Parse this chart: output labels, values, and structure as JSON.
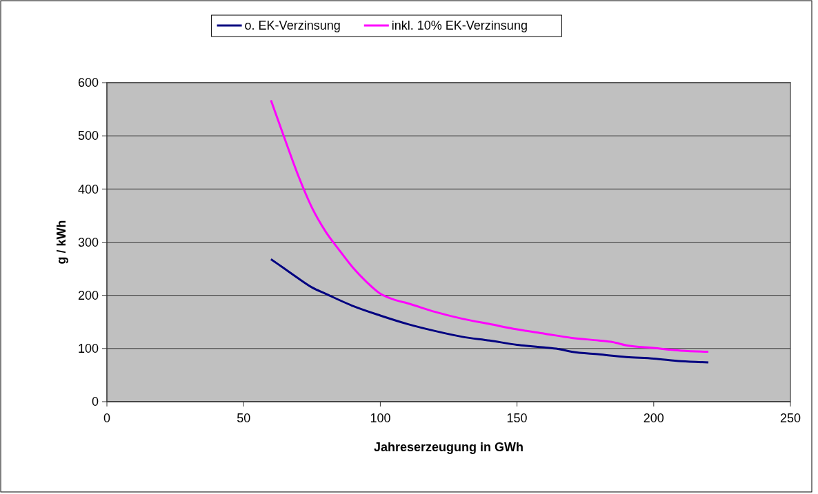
{
  "chart_data": {
    "type": "line",
    "xlabel": "Jahreserzeugung in GWh",
    "ylabel": "g / kWh",
    "xlim": [
      0,
      250
    ],
    "xticks": [
      0,
      50,
      100,
      150,
      200,
      250
    ],
    "ylim": [
      0,
      600
    ],
    "yticks": [
      0,
      100,
      200,
      300,
      400,
      500,
      600
    ],
    "grid": "y",
    "legend": "top",
    "marker": "none",
    "line_style": "solid",
    "series": [
      {
        "name": "o. EK-Verzinsung",
        "color": "#000080",
        "x": [
          60,
          65,
          70,
          75,
          80,
          90,
          100,
          110,
          120,
          130,
          140,
          150,
          160,
          165,
          170,
          180,
          190,
          200,
          210,
          220
        ],
        "values": [
          268,
          250,
          232,
          215,
          203,
          180,
          162,
          146,
          133,
          122,
          115,
          107,
          102,
          99,
          94,
          89,
          84,
          81,
          76,
          74
        ]
      },
      {
        "name": "inkl. 10% EK-Verzinsung",
        "color": "#ff00ff",
        "x": [
          60,
          65,
          70,
          75,
          80,
          85,
          90,
          95,
          100,
          105,
          110,
          120,
          130,
          140,
          150,
          160,
          170,
          180,
          185,
          190,
          200,
          210,
          220
        ],
        "values": [
          567,
          495,
          425,
          365,
          320,
          285,
          252,
          225,
          203,
          192,
          185,
          169,
          156,
          146,
          136,
          128,
          120,
          115,
          112,
          106,
          101,
          96,
          94
        ]
      }
    ]
  }
}
